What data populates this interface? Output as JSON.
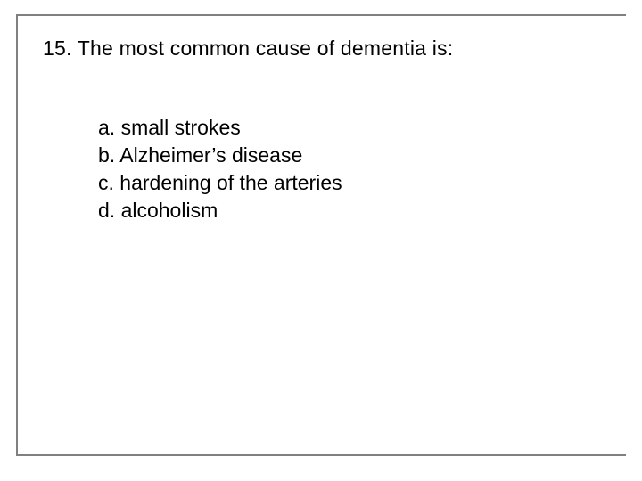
{
  "colors": {
    "background": "#ffffff",
    "text": "#000000",
    "frame": "#808080"
  },
  "typography": {
    "font_family": "Arial",
    "question_fontsize_pt": 18,
    "option_fontsize_pt": 18,
    "line_height": 1.35
  },
  "question": {
    "number": "15.",
    "text": "The most common cause of dementia is:",
    "full": "15. The most common cause of dementia is:"
  },
  "options": [
    {
      "letter": "a.",
      "text": "small strokes",
      "full": "a. small strokes"
    },
    {
      "letter": "b.",
      "text": "Alzheimer’s disease",
      "full": "b. Alzheimer’s disease"
    },
    {
      "letter": "c.",
      "text": "hardening of the arteries",
      "full": "c. hardening of the arteries"
    },
    {
      "letter": "d.",
      "text": "alcoholism",
      "full": "d. alcoholism"
    }
  ]
}
